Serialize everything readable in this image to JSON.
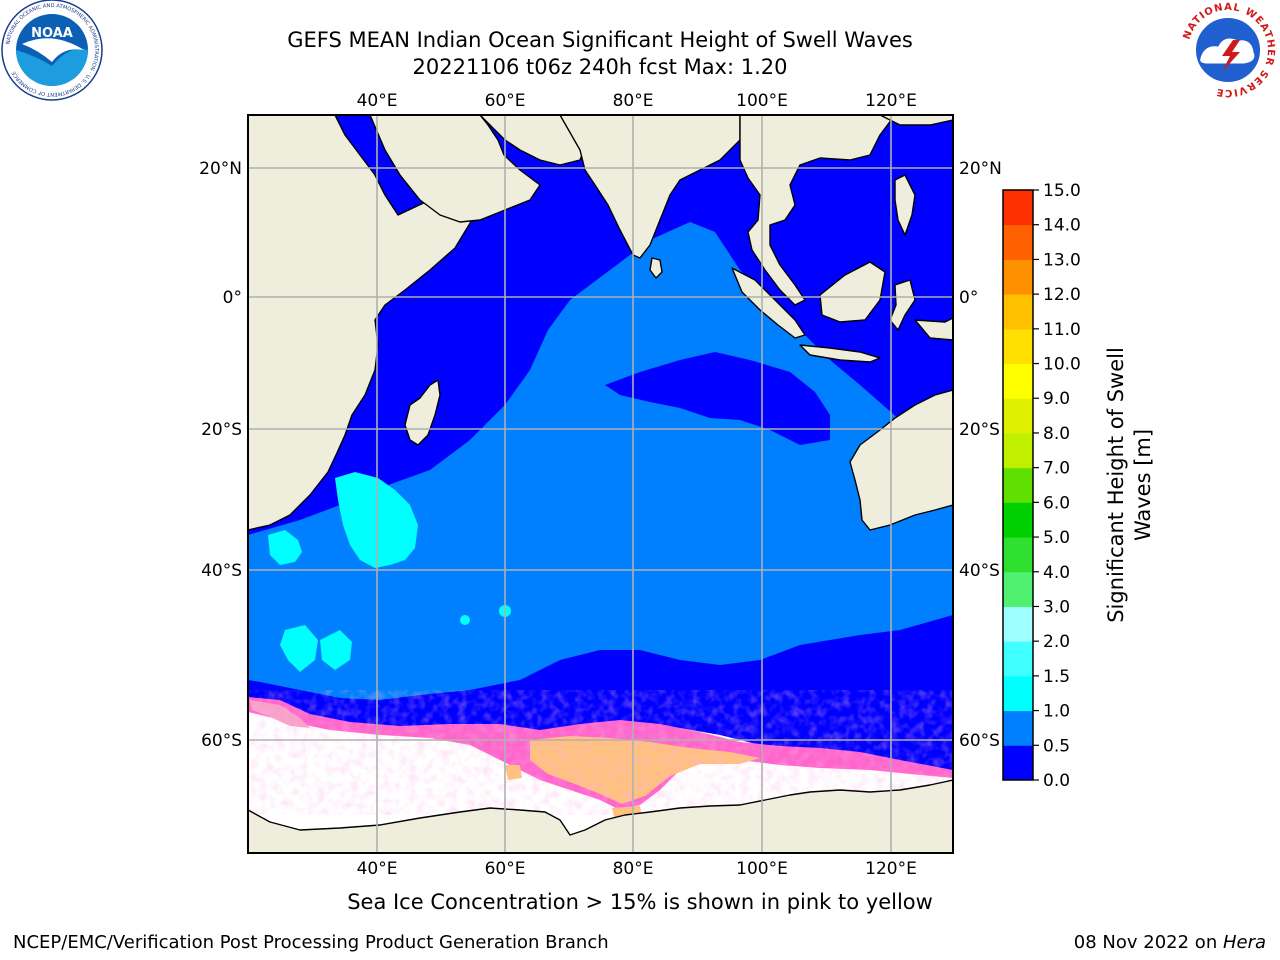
{
  "title_line1": "GEFS MEAN Indian Ocean Significant Height of Swell Waves",
  "title_line2": "20221106 t06z 240h fcst   Max: 1.20",
  "noaa_logo": {
    "text": "NOAA",
    "ring_text": "NATIONAL OCEANIC AND ATMOSPHERIC ADMINISTRATION · U.S. DEPARTMENT OF COMMERCE"
  },
  "nws_logo": {
    "ring_text": "NATIONAL WEATHER SERVICE"
  },
  "map": {
    "lon_range": [
      20,
      129
    ],
    "lat_range": [
      -72,
      27
    ],
    "lon_ticks": [
      {
        "value": 40,
        "label": "40°E"
      },
      {
        "value": 60,
        "label": "60°E"
      },
      {
        "value": 80,
        "label": "80°E"
      },
      {
        "value": 100,
        "label": "100°E"
      },
      {
        "value": 120,
        "label": "120°E"
      }
    ],
    "lat_ticks": [
      {
        "value": 20,
        "label": "20°N"
      },
      {
        "value": 0,
        "label": "0°"
      },
      {
        "value": -20,
        "label": "20°S"
      },
      {
        "value": -40,
        "label": "40°S"
      },
      {
        "value": -60,
        "label": "60°S"
      }
    ],
    "colors": {
      "land": "#efeedd",
      "band_0_05": "#0000ff",
      "band_05_10": "#0080ff",
      "band_10_15": "#00ffff",
      "ice_low": "#ff66cc",
      "ice_high": "#ffc060",
      "ice_free": "#ffffff"
    }
  },
  "colorbar": {
    "label_line1": "Significant Height of Swell",
    "label_line2": "Waves [m]",
    "levels": [
      "0.0",
      "0.5",
      "1.0",
      "1.5",
      "2.0",
      "3.0",
      "4.0",
      "5.0",
      "6.0",
      "7.0",
      "8.0",
      "9.0",
      "10.0",
      "11.0",
      "12.0",
      "13.0",
      "14.0",
      "15.0"
    ],
    "colors": [
      "#0000ff",
      "#0080ff",
      "#00ffff",
      "#40ffff",
      "#a0ffff",
      "#50f070",
      "#30e030",
      "#00d000",
      "#60e000",
      "#c0f000",
      "#e0f000",
      "#ffff00",
      "#ffe000",
      "#ffc000",
      "#ff9000",
      "#ff6000",
      "#ff3000"
    ]
  },
  "note": "Sea Ice Concentration > 15% is shown in pink to yellow",
  "footer": {
    "left": "NCEP/EMC/Verification Post Processing Product Generation Branch",
    "date": "08 Nov 2022 on ",
    "machine": "Hera"
  }
}
